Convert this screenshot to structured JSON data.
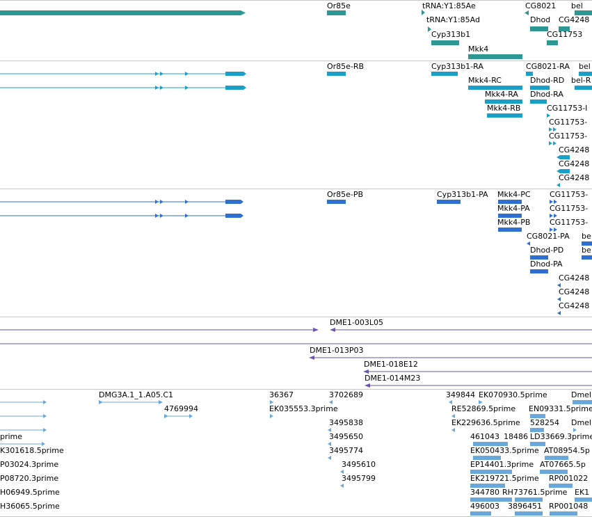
{
  "tracks": {
    "gene": {
      "color": "#2e9693",
      "labels": [
        "Or85e",
        "tRNA:Y1:85Ae",
        "CG8021",
        "bel",
        "tRNA:Y1:85Ad",
        "Dhod",
        "CG4248",
        "Cyp313b1",
        "CG11753",
        "Mkk4"
      ]
    },
    "mrna": {
      "color": "#1aa0c8",
      "labels": [
        "Or85e-RB",
        "Cyp313b1-RA",
        "CG8021-RA",
        "bel",
        "Mkk4-RC",
        "Dhod-RD",
        "bel-R",
        "Mkk4-RA",
        "Dhod-RA",
        "Mkk4-RB",
        "CG11753-I",
        "CG11753-",
        "CG11753-",
        "CG4248",
        "CG4248",
        "CG4248"
      ]
    },
    "protein": {
      "color": "#2f6fcf",
      "labels": [
        "Or85e-PB",
        "Cyp313b1-PA",
        "Mkk4-PC",
        "CG11753-",
        "Mkk4-PA",
        "CG11753-",
        "Mkk4-PB",
        "CG11753-",
        "CG8021-PA",
        "be",
        "Dhod-PD",
        "be",
        "Dhod-PA",
        "CG4248",
        "CG4248",
        "CG4248"
      ]
    },
    "clones": {
      "color": "#6a55b0",
      "labels": [
        "DME1-003L05",
        "DME1-013P03",
        "DME1-018E12",
        "DME1-014M23"
      ]
    },
    "ests": {
      "color": "#6aa8dc",
      "labels": [
        "DMG3A.1_1.A05.C1",
        "36367",
        "3702689",
        "349844",
        "EK070930.5prime",
        "Dmel",
        "4769994",
        "EK035553.3prime",
        "RE52869.5prime",
        "EN09331.5prime",
        "3495838",
        "EK229636.5prime",
        "528254",
        "Dmel",
        "prime",
        "3495650",
        "461043",
        "18486",
        "LD33669.3prime",
        "K301618.5prime",
        "3495774",
        "EK050433.5prime",
        "AT08954.5p",
        "P03024.3prime",
        "3495610",
        "EP14401.3prime",
        "AT07665.5p",
        "P08720.3prime",
        "3495799",
        "EK219721.5prime",
        "RP001022",
        "H06949.5prime",
        "344780",
        "RH73761.5prime",
        "EK1",
        "H36065.5prime",
        "496003",
        "3896451",
        "RP001048"
      ]
    }
  }
}
